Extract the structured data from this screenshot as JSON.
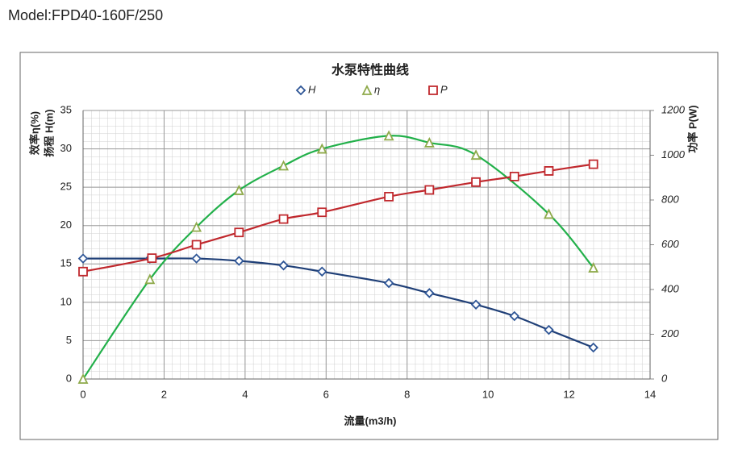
{
  "header": {
    "model": "Model:FPD40-160F/250"
  },
  "chart_data": {
    "type": "line",
    "title": "水泵特性曲线",
    "x_label": "流量(m3/h)",
    "y_labels": [
      "扬程 H(m)",
      "效率η(%)"
    ],
    "y2_label": "功率 P(W)",
    "xlim": [
      0,
      14
    ],
    "xticks": [
      0,
      2,
      4,
      6,
      8,
      10,
      12,
      14
    ],
    "ylim": [
      0,
      35
    ],
    "yticks": [
      0,
      5,
      10,
      15,
      20,
      25,
      30,
      35
    ],
    "y2lim": [
      0,
      1200
    ],
    "y2ticks": [
      0,
      200,
      400,
      600,
      800,
      1000,
      1200
    ],
    "grid": true,
    "series": [
      {
        "name": "H",
        "color": "#1f3f77",
        "marker_color": "#2e5596",
        "marker": "diamond",
        "x": [
          0,
          1.65,
          2.8,
          3.85,
          4.95,
          5.9,
          7.55,
          8.55,
          9.7,
          10.65,
          11.5,
          12.6
        ],
        "values": [
          15.7,
          15.7,
          15.7,
          15.4,
          14.8,
          14.0,
          12.5,
          11.2,
          9.7,
          8.2,
          6.4,
          4.1
        ]
      },
      {
        "name": "η",
        "color": "#22b04a",
        "marker_color": "#8faa4b",
        "marker": "triangle",
        "x": [
          0,
          1.65,
          2.8,
          3.85,
          4.95,
          5.9,
          7.55,
          8.55,
          9.7,
          11.5,
          12.6
        ],
        "values": [
          0,
          13,
          19.8,
          24.6,
          27.8,
          30,
          31.7,
          30.8,
          29.2,
          21.5,
          14.5
        ]
      },
      {
        "name": "P",
        "color": "#c0282d",
        "marker_color": "#c0282d",
        "marker": "square",
        "axis": "y2",
        "x": [
          0,
          1.7,
          2.8,
          3.85,
          4.95,
          5.9,
          7.55,
          8.55,
          9.7,
          10.65,
          11.5,
          12.6
        ],
        "values": [
          480,
          540,
          600,
          655,
          715,
          745,
          815,
          845,
          880,
          905,
          930,
          960
        ]
      }
    ]
  }
}
